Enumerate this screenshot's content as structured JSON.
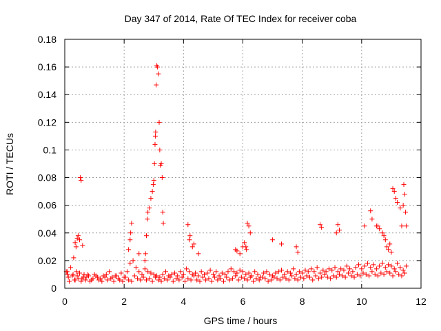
{
  "chart_data": {
    "type": "scatter",
    "title": "Day 347 of 2014, Rate Of TEC Index for receiver coba",
    "xlabel": "GPS time / hours",
    "ylabel": "ROTI / TECUs",
    "xlim": [
      0,
      12
    ],
    "ylim": [
      0,
      0.18
    ],
    "xticks": [
      0,
      2,
      4,
      6,
      8,
      10,
      12
    ],
    "xtick_labels": [
      "0",
      "2",
      "4",
      "6",
      "8",
      "10",
      "12"
    ],
    "yticks": [
      0,
      0.02,
      0.04,
      0.06,
      0.08,
      0.1,
      0.12,
      0.14,
      0.16,
      0.18
    ],
    "ytick_labels": [
      "0",
      "0.02",
      "0.04",
      "0.06",
      "0.08",
      "0.1",
      "0.12",
      "0.14",
      "0.16",
      "0.18"
    ],
    "grid": true,
    "marker": "+",
    "series": [
      {
        "name": "ROTI",
        "color": "#ff0000",
        "x": [
          0.05,
          0.12,
          0.2,
          0.28,
          0.35,
          0.42,
          0.5,
          0.58,
          0.65,
          0.72,
          0.8,
          0.9,
          1.0,
          1.1,
          1.2,
          1.3,
          1.4,
          1.5,
          1.6,
          1.7,
          1.8,
          1.9,
          2.0,
          2.1,
          2.2,
          2.3,
          2.4,
          2.5,
          2.6,
          2.7,
          2.8,
          2.9,
          3.0,
          3.1,
          3.2,
          3.3,
          3.4,
          3.5,
          3.6,
          3.7,
          3.8,
          3.9,
          4.0,
          4.1,
          4.2,
          4.3,
          4.4,
          4.5,
          4.6,
          4.7,
          4.8,
          4.9,
          5.0,
          5.1,
          5.2,
          5.3,
          5.4,
          5.5,
          5.6,
          5.7,
          5.8,
          5.9,
          6.0,
          6.1,
          6.2,
          6.3,
          6.4,
          6.5,
          6.6,
          6.7,
          6.8,
          6.9,
          7.0,
          7.1,
          7.2,
          7.3,
          7.4,
          7.5,
          7.6,
          7.7,
          7.8,
          7.9,
          8.0,
          8.1,
          8.2,
          8.3,
          8.4,
          8.5,
          8.6,
          8.7,
          8.8,
          8.9,
          9.0,
          9.1,
          9.2,
          9.3,
          9.4,
          9.5,
          9.6,
          9.7,
          9.8,
          9.9,
          10.0,
          10.1,
          10.2,
          10.3,
          10.4,
          10.5,
          10.6,
          10.7,
          10.8,
          10.9,
          11.0,
          11.1,
          11.2,
          11.3,
          11.4,
          11.5,
          0.08,
          0.15,
          0.25,
          0.33,
          0.4,
          0.47,
          0.55,
          0.62,
          0.7,
          0.78,
          0.85,
          0.95,
          1.05,
          1.15,
          1.25,
          1.35,
          1.45,
          1.55,
          1.65,
          1.75,
          1.85,
          1.95,
          2.05,
          2.15,
          2.25,
          2.35,
          2.45,
          2.55,
          2.65,
          2.75,
          2.85,
          2.95,
          3.05,
          3.15,
          3.25,
          3.35,
          3.45,
          3.55,
          3.65,
          3.75,
          3.85,
          3.95,
          4.05,
          4.15,
          4.25,
          4.35,
          4.45,
          4.55,
          4.65,
          4.75,
          4.85,
          4.95,
          5.05,
          5.15,
          5.25,
          5.35,
          5.45,
          5.55,
          5.65,
          5.75,
          5.85,
          5.95,
          6.05,
          6.15,
          6.25,
          6.35,
          6.45,
          6.55,
          6.65,
          6.75,
          6.85,
          6.95,
          7.05,
          7.15,
          7.25,
          7.35,
          7.45,
          7.55,
          7.65,
          7.75,
          7.85,
          7.95,
          8.05,
          8.15,
          8.25,
          8.35,
          8.45,
          8.55,
          8.65,
          8.75,
          8.85,
          8.95,
          9.05,
          9.15,
          9.25,
          9.35,
          9.45,
          9.55,
          9.65,
          9.75,
          9.85,
          9.95,
          10.05,
          10.15,
          10.25,
          10.35,
          10.45,
          10.55,
          10.65,
          10.75,
          10.85,
          10.95,
          11.05,
          11.15,
          11.25,
          11.35,
          11.45,
          0.1,
          0.3,
          0.35,
          0.38,
          0.42,
          0.45,
          0.5,
          0.52,
          0.55,
          0.6,
          2.15,
          2.2,
          2.22,
          2.25,
          2.5,
          2.7,
          2.72,
          2.75,
          2.78,
          2.8,
          2.85,
          2.9,
          2.95,
          2.98,
          3.0,
          3.02,
          3.04,
          3.05,
          3.06,
          3.08,
          3.1,
          3.12,
          3.15,
          3.18,
          3.2,
          3.22,
          3.25,
          3.28,
          3.3,
          3.32,
          4.15,
          4.2,
          4.22,
          4.3,
          4.35,
          4.5,
          5.75,
          5.8,
          5.9,
          6.0,
          6.05,
          6.1,
          6.12,
          6.15,
          6.2,
          6.25,
          7.0,
          7.3,
          7.8,
          7.85,
          8.6,
          8.65,
          9.15,
          9.2,
          9.25,
          10.1,
          10.3,
          10.35,
          10.5,
          10.55,
          10.6,
          10.7,
          10.75,
          10.8,
          10.85,
          10.9,
          10.95,
          11.0,
          11.05,
          11.1,
          11.15,
          11.2,
          11.3,
          11.35,
          11.4,
          11.42,
          11.45,
          11.48,
          11.5
        ],
        "y": [
          0.012,
          0.008,
          0.015,
          0.01,
          0.006,
          0.009,
          0.011,
          0.007,
          0.01,
          0.008,
          0.009,
          0.006,
          0.01,
          0.008,
          0.007,
          0.009,
          0.01,
          0.012,
          0.008,
          0.009,
          0.007,
          0.011,
          0.008,
          0.012,
          0.018,
          0.02,
          0.015,
          0.012,
          0.01,
          0.014,
          0.012,
          0.011,
          0.01,
          0.009,
          0.008,
          0.01,
          0.012,
          0.009,
          0.01,
          0.011,
          0.009,
          0.012,
          0.01,
          0.014,
          0.012,
          0.01,
          0.011,
          0.009,
          0.012,
          0.01,
          0.011,
          0.013,
          0.01,
          0.012,
          0.009,
          0.011,
          0.01,
          0.012,
          0.014,
          0.012,
          0.011,
          0.013,
          0.012,
          0.01,
          0.011,
          0.009,
          0.012,
          0.01,
          0.008,
          0.011,
          0.012,
          0.01,
          0.009,
          0.011,
          0.012,
          0.013,
          0.01,
          0.012,
          0.011,
          0.014,
          0.01,
          0.012,
          0.011,
          0.013,
          0.012,
          0.014,
          0.012,
          0.015,
          0.011,
          0.013,
          0.012,
          0.014,
          0.013,
          0.015,
          0.012,
          0.014,
          0.013,
          0.016,
          0.014,
          0.012,
          0.015,
          0.017,
          0.014,
          0.016,
          0.018,
          0.015,
          0.017,
          0.014,
          0.016,
          0.018,
          0.015,
          0.017,
          0.016,
          0.014,
          0.018,
          0.015,
          0.013,
          0.016,
          0.012,
          0.005,
          0.009,
          0.006,
          0.012,
          0.007,
          0.005,
          0.008,
          0.006,
          0.01,
          0.005,
          0.007,
          0.009,
          0.006,
          0.005,
          0.008,
          0.006,
          0.007,
          0.005,
          0.009,
          0.006,
          0.005,
          0.008,
          0.006,
          0.005,
          0.009,
          0.007,
          0.006,
          0.008,
          0.006,
          0.007,
          0.005,
          0.008,
          0.006,
          0.005,
          0.007,
          0.006,
          0.008,
          0.005,
          0.007,
          0.006,
          0.008,
          0.005,
          0.007,
          0.006,
          0.009,
          0.006,
          0.005,
          0.008,
          0.006,
          0.007,
          0.005,
          0.008,
          0.006,
          0.007,
          0.005,
          0.008,
          0.006,
          0.007,
          0.009,
          0.006,
          0.008,
          0.007,
          0.006,
          0.008,
          0.005,
          0.007,
          0.006,
          0.008,
          0.007,
          0.005,
          0.006,
          0.008,
          0.007,
          0.006,
          0.008,
          0.007,
          0.006,
          0.009,
          0.007,
          0.006,
          0.008,
          0.007,
          0.009,
          0.008,
          0.006,
          0.009,
          0.007,
          0.008,
          0.01,
          0.008,
          0.007,
          0.009,
          0.008,
          0.01,
          0.009,
          0.008,
          0.011,
          0.009,
          0.008,
          0.01,
          0.009,
          0.011,
          0.01,
          0.009,
          0.012,
          0.01,
          0.009,
          0.011,
          0.01,
          0.012,
          0.011,
          0.009,
          0.012,
          0.01,
          0.009,
          0.011,
          0.01,
          0.022,
          0.033,
          0.03,
          0.036,
          0.038,
          0.035,
          0.08,
          0.078,
          0.031,
          0.028,
          0.035,
          0.04,
          0.047,
          0.025,
          0.02,
          0.025,
          0.038,
          0.05,
          0.055,
          0.058,
          0.065,
          0.07,
          0.075,
          0.078,
          0.09,
          0.104,
          0.11,
          0.113,
          0.147,
          0.161,
          0.16,
          0.155,
          0.12,
          0.1,
          0.089,
          0.09,
          0.08,
          0.055,
          0.047,
          0.046,
          0.035,
          0.038,
          0.03,
          0.032,
          0.025,
          0.028,
          0.027,
          0.025,
          0.03,
          0.033,
          0.03,
          0.028,
          0.047,
          0.045,
          0.04,
          0.035,
          0.032,
          0.03,
          0.026,
          0.046,
          0.044,
          0.04,
          0.046,
          0.042,
          0.045,
          0.056,
          0.05,
          0.045,
          0.045,
          0.043,
          0.04,
          0.038,
          0.035,
          0.03,
          0.028,
          0.032,
          0.026,
          0.072,
          0.07,
          0.065,
          0.062,
          0.058,
          0.045,
          0.06,
          0.075,
          0.068,
          0.055,
          0.045
        ]
      }
    ]
  }
}
